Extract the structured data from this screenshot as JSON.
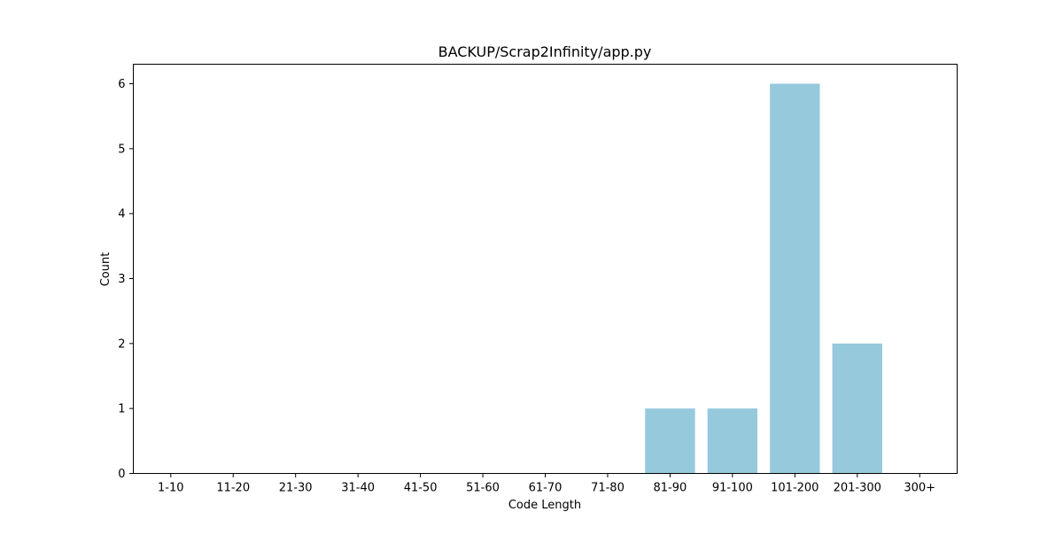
{
  "chart_data": {
    "type": "bar",
    "title": "BACKUP/Scrap2Infinity/app.py",
    "xlabel": "Code Length",
    "ylabel": "Count",
    "categories": [
      "1-10",
      "11-20",
      "21-30",
      "31-40",
      "41-50",
      "51-60",
      "61-70",
      "71-80",
      "81-90",
      "91-100",
      "101-200",
      "201-300",
      "300+"
    ],
    "values": [
      0,
      0,
      0,
      0,
      0,
      0,
      0,
      0,
      1,
      1,
      6,
      2,
      0
    ],
    "ylim": [
      0,
      6.3
    ],
    "yticks": [
      0,
      1,
      2,
      3,
      4,
      5,
      6
    ],
    "grid": false,
    "bar_color": "#96c9dc"
  }
}
